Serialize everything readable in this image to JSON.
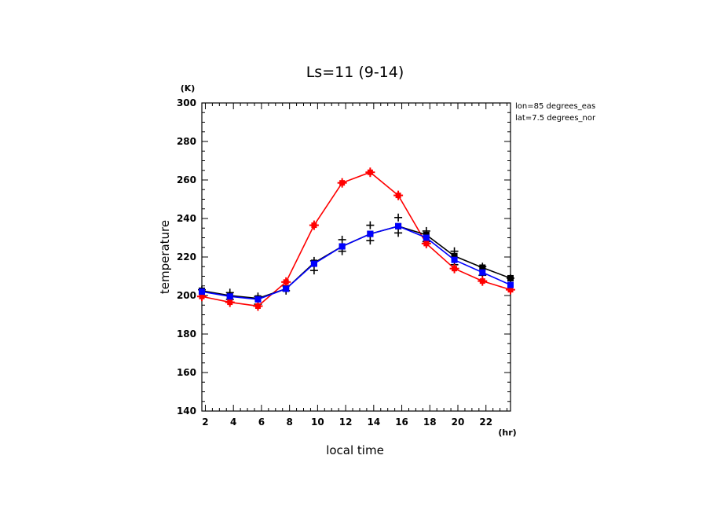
{
  "chart_data": {
    "type": "line",
    "title": "Ls=11 (9-14)",
    "xlabel": "local time",
    "ylabel": "temperature",
    "x_unit": "(hr)",
    "y_unit": "(K)",
    "xlim": [
      1.75,
      23.75
    ],
    "ylim": [
      140,
      300
    ],
    "x_ticks": [
      2,
      4,
      6,
      8,
      10,
      12,
      14,
      16,
      18,
      20,
      22
    ],
    "y_ticks": [
      140,
      160,
      180,
      200,
      220,
      240,
      260,
      280,
      300
    ],
    "annotations": [
      "lon=85 degrees_eas",
      "lat=7.5 degrees_nor"
    ],
    "x": [
      1.75,
      3.75,
      5.75,
      7.75,
      9.75,
      11.75,
      13.75,
      15.75,
      17.75,
      19.75,
      21.75,
      23.75
    ],
    "series": [
      {
        "color": "#ff0000",
        "marker": "square-plus",
        "values": [
          199.5,
          196.5,
          194.5,
          207,
          236.5,
          258.5,
          264,
          252,
          227,
          214,
          207.5,
          203
        ]
      },
      {
        "color": "#000000",
        "marker": "square",
        "values": [
          202.5,
          200,
          198.5,
          203.5,
          217,
          225.5,
          232,
          236,
          231.5,
          220.5,
          214.5,
          209
        ]
      },
      {
        "color": "#0000ff",
        "marker": "square",
        "values": [
          202,
          199.5,
          198,
          203.5,
          216.5,
          225.5,
          232,
          236,
          230,
          218.5,
          212,
          205.5
        ]
      }
    ],
    "observations": {
      "color": "#000000",
      "marker": "plus",
      "points": [
        [
          1.75,
          203
        ],
        [
          3.75,
          201.5
        ],
        [
          3.75,
          198
        ],
        [
          5.75,
          199.5
        ],
        [
          5.75,
          195.5
        ],
        [
          7.75,
          205
        ],
        [
          7.75,
          202.5
        ],
        [
          9.75,
          218
        ],
        [
          9.75,
          213
        ],
        [
          11.75,
          229
        ],
        [
          11.75,
          223
        ],
        [
          13.75,
          236.5
        ],
        [
          13.75,
          228.5
        ],
        [
          15.75,
          240.5
        ],
        [
          15.75,
          232.5
        ],
        [
          17.75,
          233.5
        ],
        [
          17.75,
          228
        ],
        [
          19.75,
          223
        ],
        [
          19.75,
          216
        ],
        [
          21.75,
          215
        ],
        [
          21.75,
          210.5
        ],
        [
          23.75,
          209
        ]
      ]
    },
    "grid": false,
    "legend": "none"
  }
}
